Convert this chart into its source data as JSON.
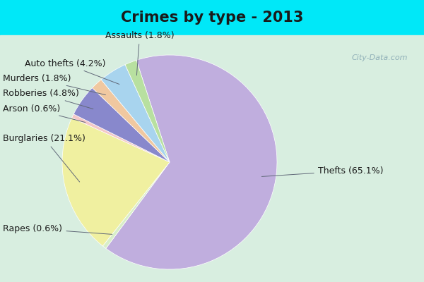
{
  "title": "Crimes by type - 2013",
  "slices": [
    {
      "label": "Thefts (65.1%)",
      "value": 65.1,
      "color": "#c0aede"
    },
    {
      "label": "Rapes (0.6%)",
      "value": 0.6,
      "color": "#d8eec8"
    },
    {
      "label": "Burglaries (21.1%)",
      "value": 21.1,
      "color": "#f0f0a0"
    },
    {
      "label": "Arson (0.6%)",
      "value": 0.6,
      "color": "#f4c8c8"
    },
    {
      "label": "Robberies (4.8%)",
      "value": 4.8,
      "color": "#8888cc"
    },
    {
      "label": "Murders (1.8%)",
      "value": 1.8,
      "color": "#f0c8a0"
    },
    {
      "label": "Auto thefts (4.2%)",
      "value": 4.2,
      "color": "#a8d4ee"
    },
    {
      "label": "Assaults (1.8%)",
      "value": 1.8,
      "color": "#b8e0a0"
    }
  ],
  "background_top": "#00e8f8",
  "background_main": "#d8eee0",
  "title_fontsize": 15,
  "label_fontsize": 9,
  "startangle": 108,
  "watermark": "City-Data.com"
}
